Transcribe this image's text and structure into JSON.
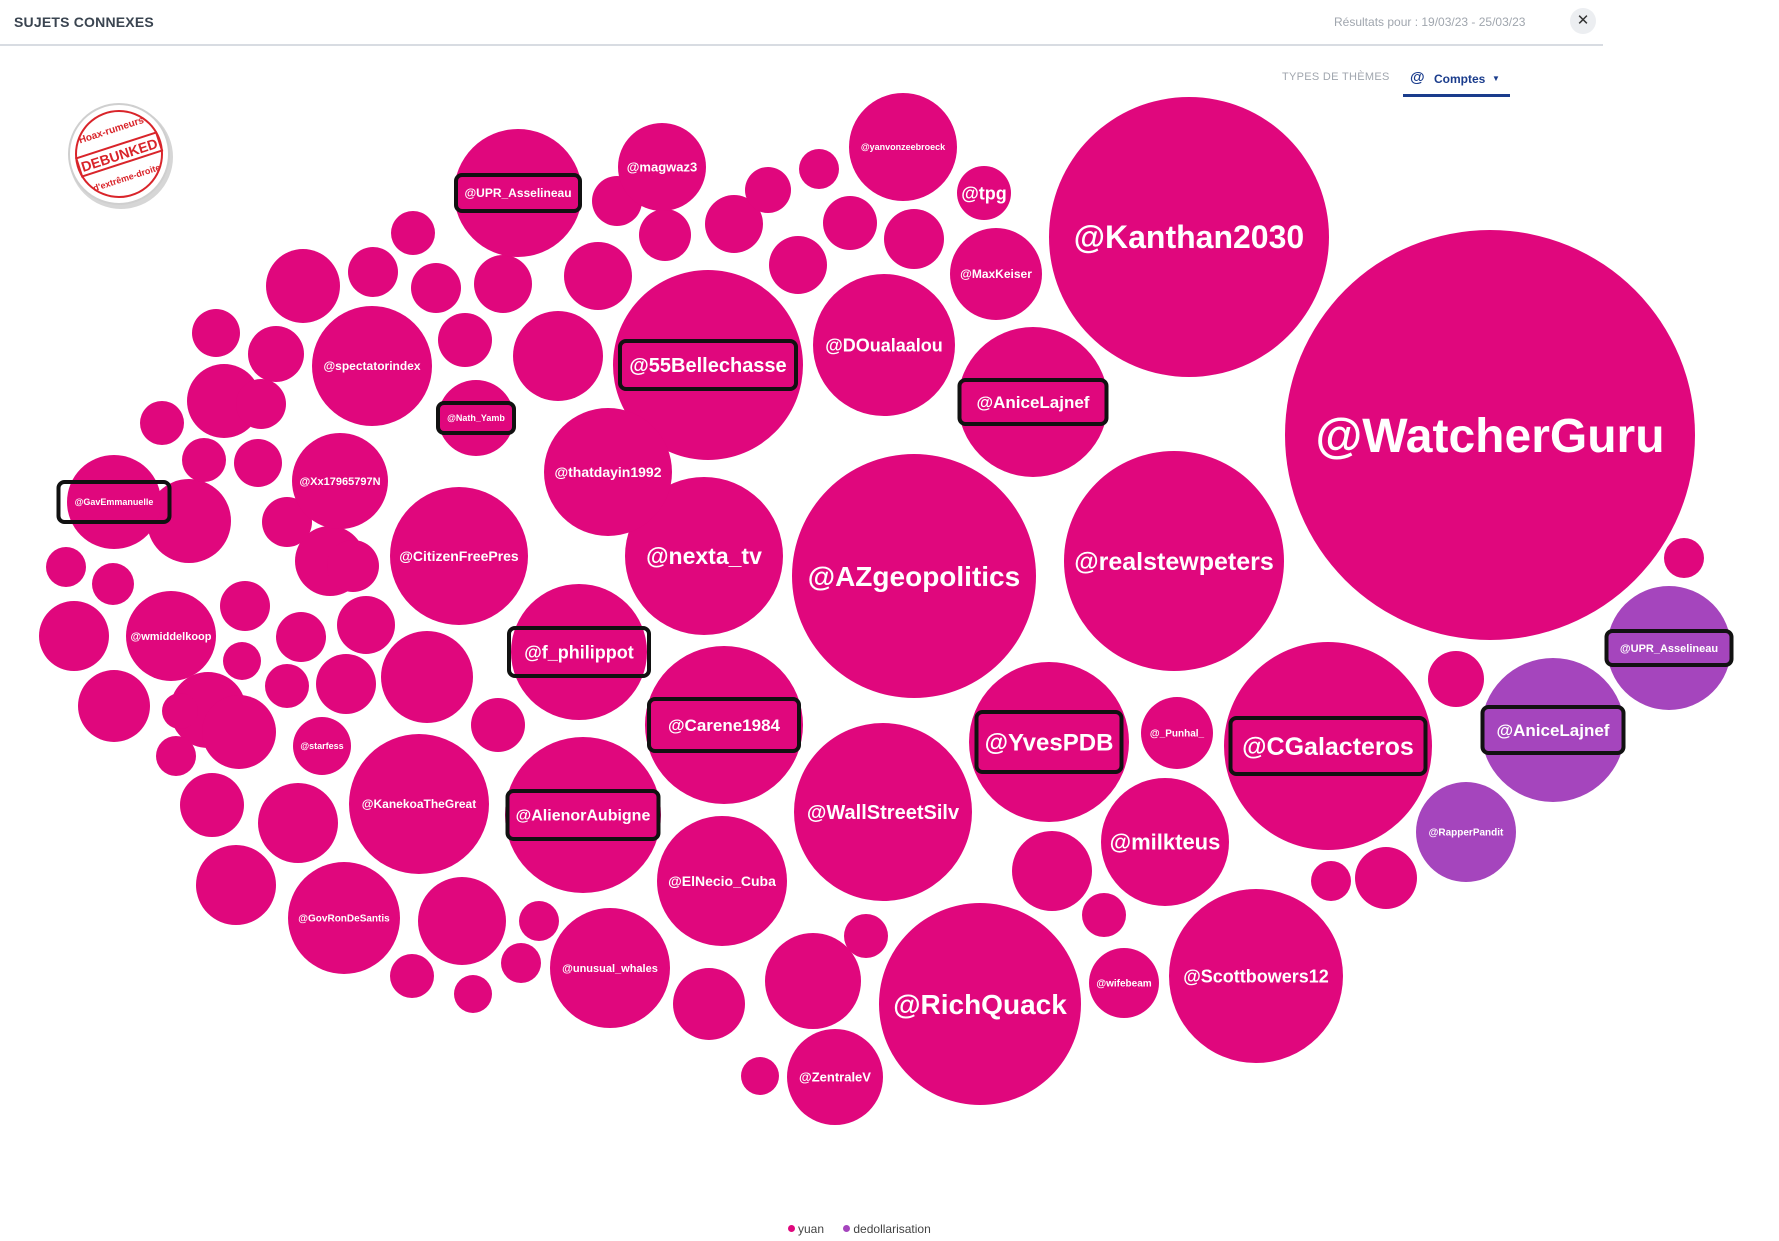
{
  "header": {
    "title": "SUJETS CONNEXES",
    "results": "Résultats pour : 19/03/23 - 25/03/23",
    "close_icon": "close-icon"
  },
  "themes": {
    "label": "TYPES DE THÈMES",
    "icon": "at-icon",
    "selected": "Comptes"
  },
  "stamp": {
    "text_top": "Hoax-rumeurs",
    "text_center": "DEBUNKED",
    "text_bottom": "d'extrême-droite"
  },
  "colors": {
    "yuan": "#e0077d",
    "dedollarisation": "#a545bd",
    "box": "#111111"
  },
  "legend": [
    {
      "label": "yuan",
      "color": "#e0077d"
    },
    {
      "label": "dedollarisation",
      "color": "#a545bd"
    }
  ],
  "bubbles": [
    {
      "label": "@WatcherGuru",
      "group": "yuan"
    },
    {
      "label": "@Kanthan2030",
      "group": "yuan"
    },
    {
      "label": "@AZgeopolitics",
      "group": "yuan"
    },
    {
      "label": "@realstewpeters",
      "group": "yuan"
    },
    {
      "label": "@RichQuack",
      "group": "yuan"
    },
    {
      "label": "@nexta_tv",
      "group": "yuan"
    },
    {
      "label": "@55Bellechasse",
      "group": "yuan",
      "boxed": true
    },
    {
      "label": "@CGalacteros",
      "group": "yuan",
      "boxed": true
    },
    {
      "label": "@WallStreetSilv",
      "group": "yuan"
    },
    {
      "label": "@YvesPDB",
      "group": "yuan",
      "boxed": true
    },
    {
      "label": "@Scottbowers12",
      "group": "yuan"
    },
    {
      "label": "@AniceLajnef",
      "group": "yuan",
      "boxed": true
    },
    {
      "label": "@DOualaalou",
      "group": "yuan"
    },
    {
      "label": "@Carene1984",
      "group": "yuan",
      "boxed": true
    },
    {
      "label": "@AlienorAubigne",
      "group": "yuan",
      "boxed": true
    },
    {
      "label": "@f_philippot",
      "group": "yuan",
      "boxed": true
    },
    {
      "label": "@KanekoaTheGreat",
      "group": "yuan"
    },
    {
      "label": "@CitizenFreePres",
      "group": "yuan"
    },
    {
      "label": "@thatdayin1992",
      "group": "yuan"
    },
    {
      "label": "@UPR_Asselineau",
      "group": "yuan",
      "boxed": true
    },
    {
      "label": "@spectatorindex",
      "group": "yuan"
    },
    {
      "label": "@milkteus",
      "group": "yuan"
    },
    {
      "label": "@ElNecio_Cuba",
      "group": "yuan"
    },
    {
      "label": "@unusual_whales",
      "group": "yuan"
    },
    {
      "label": "@GovRonDeSantis",
      "group": "yuan"
    },
    {
      "label": "@yanvonzeebroeck",
      "group": "yuan"
    },
    {
      "label": "@Xx17965797N",
      "group": "yuan"
    },
    {
      "label": "@wmiddelkoop",
      "group": "yuan"
    },
    {
      "label": "@GavEmmanuelle",
      "group": "yuan",
      "boxed": true
    },
    {
      "label": "@MaxKeiser",
      "group": "yuan"
    },
    {
      "label": "@magwaz3",
      "group": "yuan"
    },
    {
      "label": "@ZentraleV",
      "group": "yuan"
    },
    {
      "label": "@wifebeam",
      "group": "yuan"
    },
    {
      "label": "@_Punhal_",
      "group": "yuan"
    },
    {
      "label": "@Nath_Yamb",
      "group": "yuan",
      "boxed": true
    },
    {
      "label": "@tpg",
      "group": "yuan"
    },
    {
      "label": "@starfess",
      "group": "yuan"
    },
    {
      "label": "@UPR_Asselineau",
      "group": "dedollarisation",
      "boxed": true
    },
    {
      "label": "@AniceLajnef",
      "group": "dedollarisation",
      "boxed": true
    },
    {
      "label": "@RapperPandit",
      "group": "dedollarisation"
    }
  ]
}
